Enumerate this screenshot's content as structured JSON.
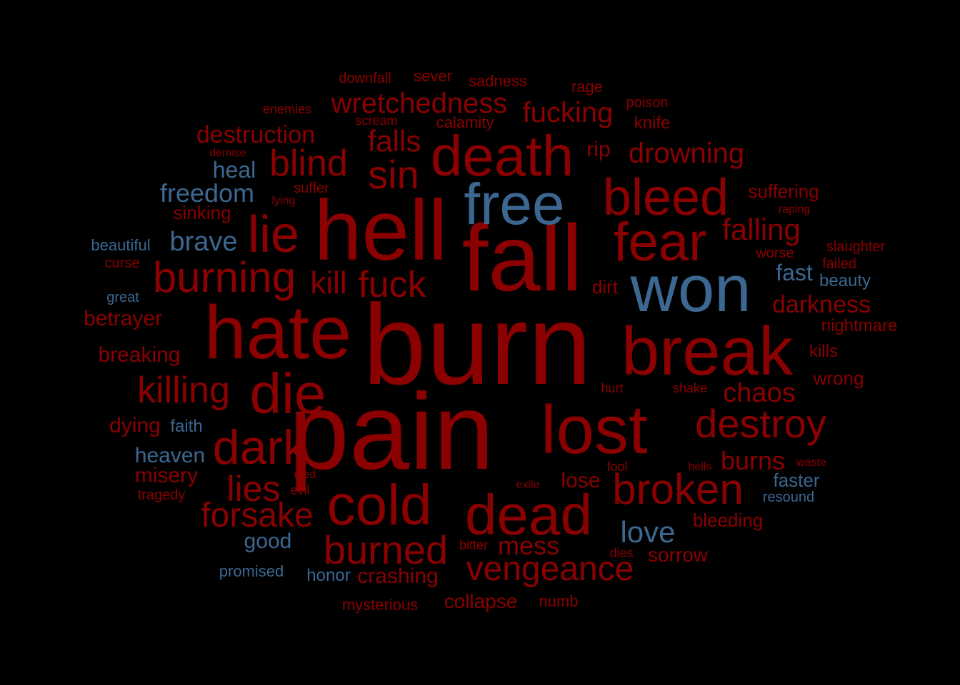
{
  "colors": {
    "background": "#000000",
    "negative": "#8b0000",
    "positive": "#3b6790"
  },
  "words": [
    {
      "text": "pain",
      "sentiment": "negative"
    },
    {
      "text": "lost",
      "sentiment": "negative"
    },
    {
      "text": "burn",
      "sentiment": "negative"
    },
    {
      "text": "hate",
      "sentiment": "negative"
    },
    {
      "text": "fall",
      "sentiment": "negative"
    },
    {
      "text": "hell",
      "sentiment": "negative"
    },
    {
      "text": "won",
      "sentiment": "positive"
    },
    {
      "text": "break",
      "sentiment": "negative"
    },
    {
      "text": "free",
      "sentiment": "positive"
    },
    {
      "text": "death",
      "sentiment": "negative"
    },
    {
      "text": "bleed",
      "sentiment": "negative"
    },
    {
      "text": "fear",
      "sentiment": "negative"
    },
    {
      "text": "die",
      "sentiment": "negative"
    },
    {
      "text": "dead",
      "sentiment": "negative"
    },
    {
      "text": "cold",
      "sentiment": "negative"
    },
    {
      "text": "dark",
      "sentiment": "negative"
    },
    {
      "text": "broken",
      "sentiment": "negative"
    },
    {
      "text": "destroy",
      "sentiment": "negative"
    },
    {
      "text": "lie",
      "sentiment": "negative"
    },
    {
      "text": "burning",
      "sentiment": "negative"
    },
    {
      "text": "sin",
      "sentiment": "negative"
    },
    {
      "text": "blind",
      "sentiment": "negative"
    },
    {
      "text": "fuck",
      "sentiment": "negative"
    },
    {
      "text": "burned",
      "sentiment": "negative"
    },
    {
      "text": "vengeance",
      "sentiment": "negative"
    },
    {
      "text": "forsake",
      "sentiment": "negative"
    },
    {
      "text": "killing",
      "sentiment": "negative"
    },
    {
      "text": "lies",
      "sentiment": "negative"
    },
    {
      "text": "kill",
      "sentiment": "negative"
    },
    {
      "text": "falls",
      "sentiment": "negative"
    },
    {
      "text": "drowning",
      "sentiment": "negative"
    },
    {
      "text": "falling",
      "sentiment": "negative"
    },
    {
      "text": "fucking",
      "sentiment": "negative"
    },
    {
      "text": "wretchedness",
      "sentiment": "negative"
    },
    {
      "text": "chaos",
      "sentiment": "negative"
    },
    {
      "text": "love",
      "sentiment": "positive"
    },
    {
      "text": "destruction",
      "sentiment": "negative"
    },
    {
      "text": "freedom",
      "sentiment": "positive"
    },
    {
      "text": "brave",
      "sentiment": "positive"
    },
    {
      "text": "darkness",
      "sentiment": "negative"
    },
    {
      "text": "burns",
      "sentiment": "negative"
    },
    {
      "text": "mess",
      "sentiment": "negative"
    },
    {
      "text": "heal",
      "sentiment": "positive"
    },
    {
      "text": "heaven",
      "sentiment": "positive"
    },
    {
      "text": "misery",
      "sentiment": "negative"
    },
    {
      "text": "fast",
      "sentiment": "positive"
    },
    {
      "text": "betrayer",
      "sentiment": "negative"
    },
    {
      "text": "breaking",
      "sentiment": "negative"
    },
    {
      "text": "crashing",
      "sentiment": "negative"
    },
    {
      "text": "collapse",
      "sentiment": "negative"
    },
    {
      "text": "sorrow",
      "sentiment": "negative"
    },
    {
      "text": "bleeding",
      "sentiment": "negative"
    },
    {
      "text": "lose",
      "sentiment": "negative"
    },
    {
      "text": "dying",
      "sentiment": "negative"
    },
    {
      "text": "good",
      "sentiment": "positive"
    },
    {
      "text": "suffering",
      "sentiment": "negative"
    },
    {
      "text": "rip",
      "sentiment": "negative"
    },
    {
      "text": "dirt",
      "sentiment": "negative"
    },
    {
      "text": "sinking",
      "sentiment": "negative"
    },
    {
      "text": "wrong",
      "sentiment": "negative"
    },
    {
      "text": "nightmare",
      "sentiment": "negative"
    },
    {
      "text": "faster",
      "sentiment": "positive"
    },
    {
      "text": "faith",
      "sentiment": "positive"
    },
    {
      "text": "honor",
      "sentiment": "positive"
    },
    {
      "text": "beauty",
      "sentiment": "positive"
    },
    {
      "text": "kills",
      "sentiment": "negative"
    },
    {
      "text": "knife",
      "sentiment": "negative"
    },
    {
      "text": "calamity",
      "sentiment": "negative"
    },
    {
      "text": "sadness",
      "sentiment": "negative"
    },
    {
      "text": "sever",
      "sentiment": "negative"
    },
    {
      "text": "downfall",
      "sentiment": "negative"
    },
    {
      "text": "rage",
      "sentiment": "negative"
    },
    {
      "text": "poison",
      "sentiment": "negative"
    },
    {
      "text": "suffer",
      "sentiment": "negative"
    },
    {
      "text": "beautiful",
      "sentiment": "positive"
    },
    {
      "text": "promised",
      "sentiment": "positive"
    },
    {
      "text": "worse",
      "sentiment": "negative"
    },
    {
      "text": "slaughter",
      "sentiment": "negative"
    },
    {
      "text": "failed",
      "sentiment": "negative"
    },
    {
      "text": "resound",
      "sentiment": "positive"
    },
    {
      "text": "mysterious",
      "sentiment": "negative"
    },
    {
      "text": "numb",
      "sentiment": "negative"
    },
    {
      "text": "enemies",
      "sentiment": "negative"
    },
    {
      "text": "scream",
      "sentiment": "negative"
    },
    {
      "text": "great",
      "sentiment": "positive"
    },
    {
      "text": "curse",
      "sentiment": "negative"
    },
    {
      "text": "tragedy",
      "sentiment": "negative"
    },
    {
      "text": "fool",
      "sentiment": "negative"
    },
    {
      "text": "evil",
      "sentiment": "negative"
    },
    {
      "text": "hurt",
      "sentiment": "negative"
    },
    {
      "text": "shake",
      "sentiment": "negative"
    },
    {
      "text": "waste",
      "sentiment": "negative"
    },
    {
      "text": "hells",
      "sentiment": "negative"
    },
    {
      "text": "dies",
      "sentiment": "negative"
    },
    {
      "text": "bitter",
      "sentiment": "negative"
    },
    {
      "text": "exile",
      "sentiment": "negative"
    },
    {
      "text": "died",
      "sentiment": "negative"
    },
    {
      "text": "raping",
      "sentiment": "negative"
    },
    {
      "text": "demise",
      "sentiment": "negative"
    },
    {
      "text": "lying",
      "sentiment": "negative"
    }
  ]
}
